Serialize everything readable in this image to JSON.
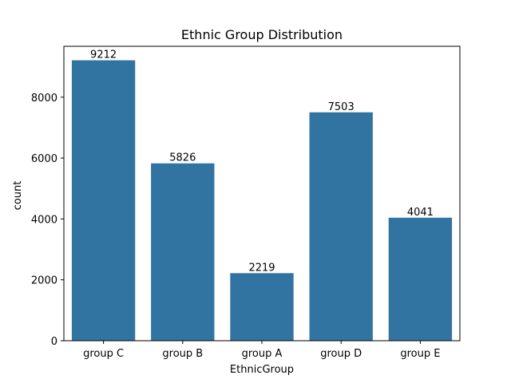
{
  "chart_data": {
    "type": "bar",
    "title": "Ethnic Group Distribution",
    "xlabel": "EthnicGroup",
    "ylabel": "count",
    "categories": [
      "group C",
      "group B",
      "group A",
      "group D",
      "group E"
    ],
    "values": [
      9212,
      5826,
      2219,
      7503,
      4041
    ],
    "data_labels": [
      "9212",
      "5826",
      "2219",
      "7503",
      "4041"
    ],
    "yticks": [
      0,
      2000,
      4000,
      6000,
      8000
    ],
    "ytick_labels": [
      "0",
      "2000",
      "4000",
      "6000",
      "8000"
    ],
    "ylim": [
      0,
      9672
    ],
    "grid": false,
    "bar_color": "#3274a1"
  }
}
